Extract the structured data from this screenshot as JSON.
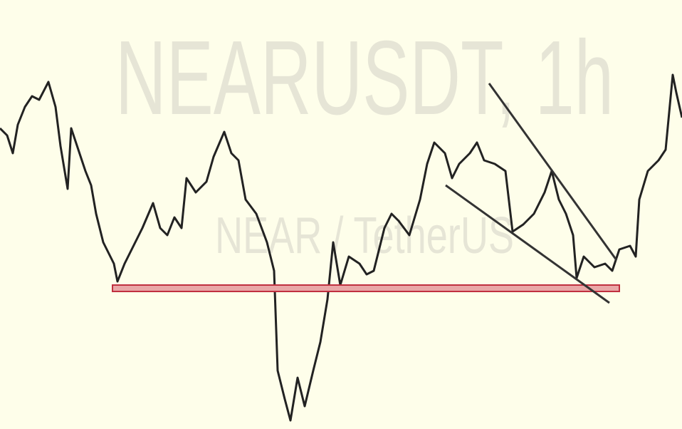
{
  "watermark": {
    "symbol": "NEARUSDT, 1h",
    "description": "NEAR / TetherUS"
  }
}
